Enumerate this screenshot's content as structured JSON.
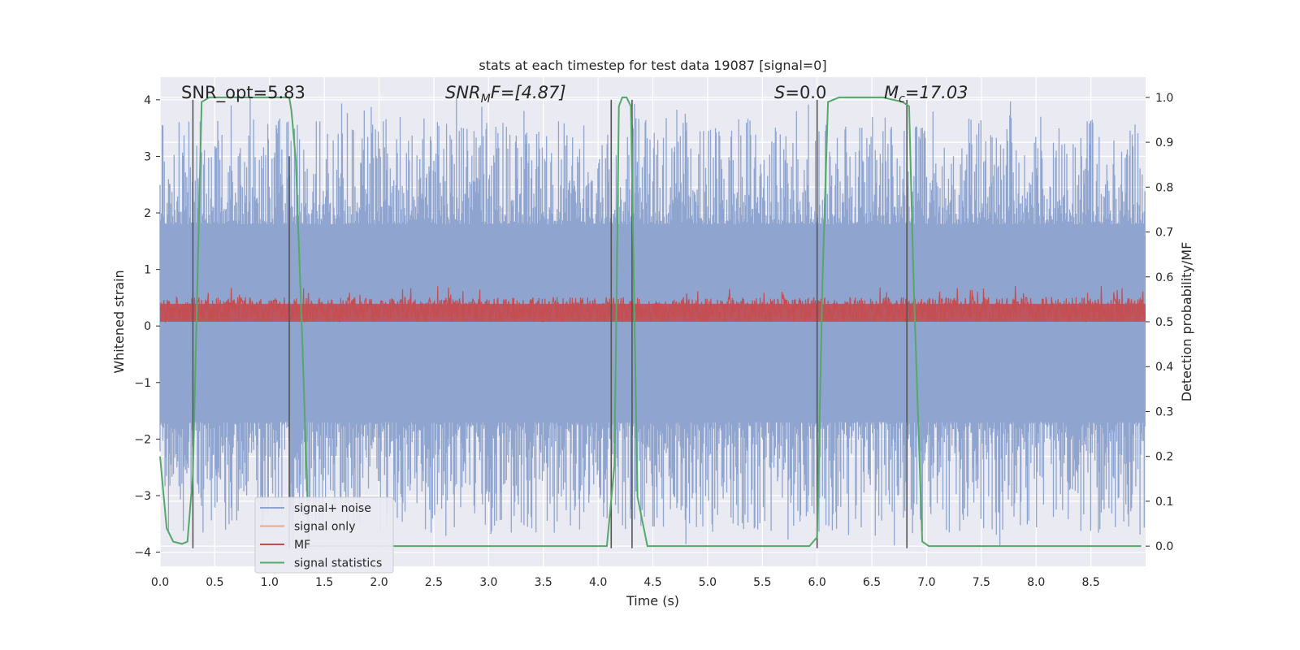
{
  "chart_data": {
    "type": "line",
    "title": "stats at each timestep for test data 19087 [signal=0]",
    "xlabel": "Time (s)",
    "ylabel": "Whitened strain",
    "y2label": "Detection probability/MF",
    "xlim": [
      0,
      9.0
    ],
    "ylim": [
      -4.25,
      4.4
    ],
    "y2lim": [
      -0.045,
      1.045
    ],
    "xticks": [
      0.0,
      0.5,
      1.0,
      1.5,
      2.0,
      2.5,
      3.0,
      3.5,
      4.0,
      4.5,
      5.0,
      5.5,
      6.0,
      6.5,
      7.0,
      7.5,
      8.0,
      8.5
    ],
    "xtick_labels": [
      "0.0",
      "0.5",
      "1.0",
      "1.5",
      "2.0",
      "2.5",
      "3.0",
      "3.5",
      "4.0",
      "4.5",
      "5.0",
      "5.5",
      "6.0",
      "6.5",
      "7.0",
      "7.5",
      "8.0",
      "8.5"
    ],
    "yticks": [
      -4,
      -3,
      -2,
      -1,
      0,
      1,
      2,
      3,
      4
    ],
    "ytick_labels": [
      "−4",
      "−3",
      "−2",
      "−1",
      "0",
      "1",
      "2",
      "3",
      "4"
    ],
    "y2ticks": [
      0.0,
      0.1,
      0.2,
      0.3,
      0.4,
      0.5,
      0.6,
      0.7,
      0.8,
      0.9,
      1.0
    ],
    "y2tick_labels": [
      "0.0",
      "0.1",
      "0.2",
      "0.3",
      "0.4",
      "0.5",
      "0.6",
      "0.7",
      "0.8",
      "0.9",
      "1.0"
    ],
    "grid": true,
    "legend_position": "lower-left",
    "colors": {
      "background": "#eaeaf2",
      "noise": "#8fa5cf",
      "signal_only": "#f0a585",
      "mf": "#c44e52",
      "stat": "#55a868",
      "vline": "#555555"
    },
    "series": [
      {
        "name": "signal+ noise",
        "axis": "left",
        "description_visual": "dense noise band roughly between -2.5 and 2.5 with spikes to about +/-4",
        "envelope": {
          "core": [
            -1.5,
            1.6
          ],
          "peak": [
            -3.9,
            4.0
          ]
        }
      },
      {
        "name": "signal only",
        "axis": "left",
        "values": []
      },
      {
        "name": "MF",
        "axis": "right",
        "envelope": [
          0.5,
          0.56
        ],
        "peak": 0.58
      },
      {
        "name": "signal statistics",
        "axis": "right",
        "x": [
          0.0,
          0.06,
          0.12,
          0.2,
          0.25,
          0.3,
          0.38,
          0.45,
          0.6,
          0.8,
          1.0,
          1.18,
          1.2,
          1.24,
          1.3,
          1.36,
          1.5,
          2.0,
          3.0,
          4.0,
          4.08,
          4.15,
          4.19,
          4.22,
          4.26,
          4.3,
          4.36,
          4.45,
          5.0,
          5.93,
          6.0,
          6.05,
          6.1,
          6.2,
          6.4,
          6.6,
          6.78,
          6.84,
          6.88,
          6.92,
          6.96,
          7.02,
          7.5,
          8.0,
          8.5,
          8.96
        ],
        "values": [
          0.2,
          0.04,
          0.01,
          0.005,
          0.01,
          0.16,
          0.99,
          1.0,
          1.0,
          1.0,
          1.0,
          1.0,
          0.97,
          0.86,
          0.45,
          0.0,
          0.0,
          0.0,
          0.0,
          0.0,
          0.0,
          0.18,
          0.98,
          1.0,
          1.0,
          0.98,
          0.11,
          0.0,
          0.0,
          0.0,
          0.02,
          0.6,
          0.99,
          1.0,
          1.0,
          1.0,
          0.99,
          0.98,
          0.6,
          0.3,
          0.01,
          0.0,
          0.0,
          0.0,
          0.0,
          0.0
        ]
      }
    ],
    "vlines": [
      {
        "x": 0.3,
        "y_top": 4.0,
        "y_bottom": -3.93
      },
      {
        "x": 1.18,
        "y_top": 3.0,
        "y_bottom": -3.93
      },
      {
        "x": 4.12,
        "y_top": 4.0,
        "y_bottom": -3.93
      },
      {
        "x": 4.31,
        "y_top": 4.0,
        "y_bottom": -3.93
      },
      {
        "x": 6.0,
        "y_top": 4.0,
        "y_bottom": -3.93
      },
      {
        "x": 6.82,
        "y_top": 4.0,
        "y_bottom": -3.93
      }
    ],
    "annotations": [
      {
        "prefix": "SNR_opt",
        "subscript": "",
        "suffix": "=5.83",
        "italic": false
      },
      {
        "prefix": "SNR",
        "subscript": "M",
        "suffix": "F=[4.87]",
        "italic": true
      },
      {
        "prefix": "S",
        "subscript": "",
        "suffix": "=0.0",
        "italic": true
      },
      {
        "prefix": "M",
        "subscript": "c",
        "suffix": "=17.03",
        "italic": true
      }
    ],
    "legend": [
      "signal+ noise",
      "signal only",
      "MF",
      "signal statistics"
    ]
  }
}
